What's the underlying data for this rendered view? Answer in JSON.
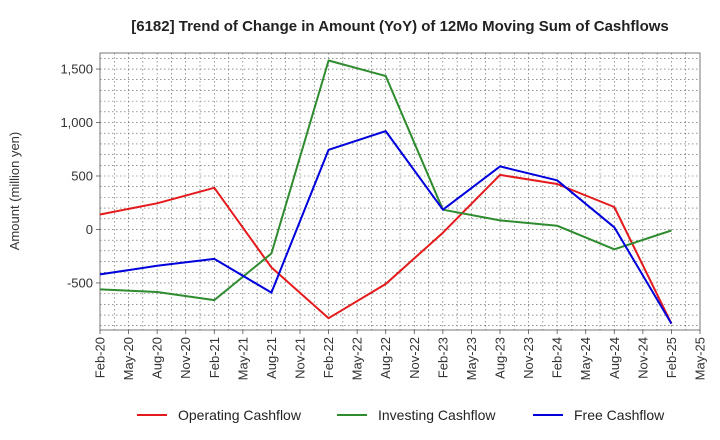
{
  "chart_data": {
    "type": "line",
    "title": "[6182]  Trend of Change in Amount (YoY) of 12Mo Moving Sum of Cashflows",
    "xlabel": "",
    "ylabel": "Amount (million yen)",
    "categories": [
      "Feb-20",
      "May-20",
      "Aug-20",
      "Nov-20",
      "Feb-21",
      "May-21",
      "Aug-21",
      "Nov-21",
      "Feb-22",
      "May-22",
      "Aug-22",
      "Nov-22",
      "Feb-23",
      "May-23",
      "Aug-23",
      "Nov-23",
      "Feb-24",
      "May-24",
      "Aug-24",
      "Nov-24",
      "Feb-25",
      "May-25"
    ],
    "ylim": [
      -940,
      1650
    ],
    "yticks": [
      1500,
      1000,
      500,
      0,
      -500
    ],
    "ytick_labels": [
      "1,500",
      "1,000",
      "500",
      "0",
      "-500"
    ],
    "grid": true,
    "legend_position": "bottom",
    "series": [
      {
        "name": "Operating Cashflow",
        "color": "#e41a1c",
        "values": [
          140,
          null,
          245,
          null,
          390,
          null,
          -355,
          null,
          -830,
          null,
          -510,
          null,
          -30,
          null,
          510,
          null,
          425,
          null,
          210,
          null,
          -880,
          null
        ]
      },
      {
        "name": "Investing Cashflow",
        "color": "#2e8b2e",
        "values": [
          -560,
          null,
          -585,
          null,
          -660,
          null,
          -225,
          null,
          1580,
          null,
          1435,
          null,
          185,
          null,
          85,
          null,
          35,
          null,
          -185,
          null,
          -10,
          null
        ]
      },
      {
        "name": "Free Cashflow",
        "color": "#0000dd",
        "values": [
          -420,
          null,
          -340,
          null,
          -275,
          null,
          -590,
          null,
          745,
          null,
          920,
          null,
          185,
          null,
          590,
          null,
          460,
          null,
          20,
          null,
          -880,
          null
        ]
      }
    ]
  }
}
